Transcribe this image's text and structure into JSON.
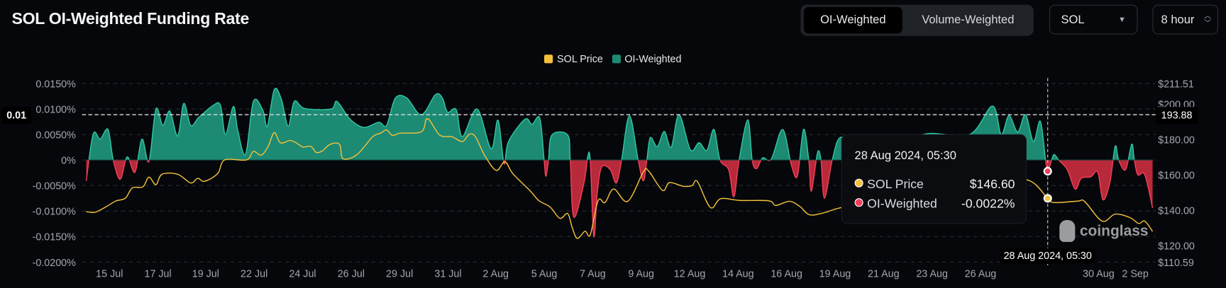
{
  "header": {
    "title": "SOL OI-Weighted Funding Rate",
    "segments": [
      "OI-Weighted",
      "Volume-Weighted"
    ],
    "active_segment": "OI-Weighted",
    "coin_select": "SOL",
    "interval_select": "8 hour"
  },
  "colors": {
    "background": "#05070a",
    "positive_fill": "#1d8a74",
    "positive_line": "#2fc7a3",
    "negative_fill": "#b8293a",
    "negative_line": "#f2405a",
    "price_line": "#f3c13a",
    "grid": "#2a2d33"
  },
  "tooltip": {
    "title": "28 Aug 2024, 05:30",
    "rows": [
      {
        "label": "SOL Price",
        "value": "$146.60",
        "color": "#f3c13a"
      },
      {
        "label": "OI-Weighted",
        "value": "-0.0022%",
        "color": "#f2405a"
      }
    ]
  },
  "crosshair": {
    "x_label": "28 Aug 2024, 05:30",
    "x_time": "2024-08-28 05:30",
    "left_label": "0.01",
    "right_label": "193.88",
    "price": 193.88
  },
  "watermark": "coinglass",
  "chart_data": {
    "type": "area+line",
    "legend": [
      {
        "name": "SOL Price",
        "color": "#f3c13a"
      },
      {
        "name": "OI-Weighted",
        "color": "#1d8a74"
      }
    ],
    "legend_position": "top-center",
    "grid": true,
    "x_tick_labels": [
      "15 Jul",
      "17 Jul",
      "19 Jul",
      "22 Jul",
      "24 Jul",
      "26 Jul",
      "29 Jul",
      "31 Jul",
      "2 Aug",
      "5 Aug",
      "7 Aug",
      "9 Aug",
      "12 Aug",
      "14 Aug",
      "16 Aug",
      "19 Aug",
      "21 Aug",
      "23 Aug",
      "26 Aug",
      "30 Aug",
      "2 Sep"
    ],
    "left_axis": {
      "unit": "%",
      "ylim": [
        -0.02,
        0.015
      ],
      "tick_labels": [
        "0.0150%",
        "0.0100%",
        "0.0050%",
        "0%",
        "-0.0050%",
        "-0.0100%",
        "-0.0150%",
        "-0.0200%"
      ],
      "ticks": [
        0.015,
        0.01,
        0.005,
        0,
        -0.005,
        -0.01,
        -0.015,
        -0.02
      ]
    },
    "right_axis": {
      "ylim": [
        110.59,
        211.51
      ],
      "tick_labels": [
        "$211.51",
        "$200.00",
        "$180.00",
        "$160.00",
        "$140.00",
        "$120.00",
        "$110.59"
      ],
      "ticks": [
        211.51,
        200,
        180,
        160,
        140,
        120,
        110.59
      ]
    },
    "series": [
      {
        "name": "OI-Weighted",
        "axis": "left",
        "points": [
          [
            "2024-07-13 05:00",
            -0.0041
          ],
          [
            "2024-07-13 13:00",
            0.0051
          ],
          [
            "2024-07-13 21:00",
            0.0041
          ],
          [
            "2024-07-14 06:00",
            0.006
          ],
          [
            "2024-07-14 12:00",
            0.0
          ],
          [
            "2024-07-14 20:00",
            -0.0038
          ],
          [
            "2024-07-15 04:00",
            0.0006
          ],
          [
            "2024-07-15 13:00",
            -0.0024
          ],
          [
            "2024-07-15 21:00",
            0.0041
          ],
          [
            "2024-07-16 05:00",
            -0.0003
          ],
          [
            "2024-07-16 13:00",
            0.01
          ],
          [
            "2024-07-16 21:00",
            0.0068
          ],
          [
            "2024-07-17 05:00",
            0.0096
          ],
          [
            "2024-07-17 14:00",
            0.0047
          ],
          [
            "2024-07-17 21:00",
            0.0111
          ],
          [
            "2024-07-18 05:00",
            0.0068
          ],
          [
            "2024-07-18 14:00",
            0.0083
          ],
          [
            "2024-07-19 06:00",
            0.0106
          ],
          [
            "2024-07-19 15:00",
            0.0108
          ],
          [
            "2024-07-19 21:00",
            0.005
          ],
          [
            "2024-07-20 06:00",
            0.0105
          ],
          [
            "2024-07-20 11:00",
            0.0059
          ],
          [
            "2024-07-20 20:00",
            0.0011
          ],
          [
            "2024-07-21 05:00",
            0.0115
          ],
          [
            "2024-07-21 16:00",
            0.0097
          ],
          [
            "2024-07-21 21:00",
            0.0066
          ],
          [
            "2024-07-22 05:00",
            0.0138
          ],
          [
            "2024-07-22 13:00",
            0.012
          ],
          [
            "2024-07-22 21:00",
            0.0066
          ],
          [
            "2024-07-23 04:00",
            0.0115
          ],
          [
            "2024-07-23 16:00",
            0.0101
          ],
          [
            "2024-07-24 22:00",
            0.01
          ],
          [
            "2024-07-25 05:00",
            0.0115
          ],
          [
            "2024-07-25 20:00",
            0.008
          ],
          [
            "2024-07-26 12:00",
            0.0064
          ],
          [
            "2024-07-27 05:00",
            0.0074
          ],
          [
            "2024-07-27 14:00",
            0.0068
          ],
          [
            "2024-07-28 00:00",
            0.0121
          ],
          [
            "2024-07-28 13:00",
            0.0122
          ],
          [
            "2024-07-29 06:00",
            0.0089
          ],
          [
            "2024-07-29 22:00",
            0.0128
          ],
          [
            "2024-07-30 06:00",
            0.0122
          ],
          [
            "2024-07-30 12:00",
            0.0094
          ],
          [
            "2024-07-30 22:00",
            0.0099
          ],
          [
            "2024-07-31 05:00",
            0.0046
          ],
          [
            "2024-07-31 22:00",
            0.01
          ],
          [
            "2024-08-01 14:00",
            0.0022
          ],
          [
            "2024-08-01 22:00",
            0.0078
          ],
          [
            "2024-08-02 05:00",
            -0.0007
          ],
          [
            "2024-08-02 10:00",
            0.0036
          ],
          [
            "2024-08-03 05:00",
            0.008
          ],
          [
            "2024-08-03 13:00",
            0.007
          ],
          [
            "2024-08-03 22:00",
            0.0082
          ],
          [
            "2024-08-04 03:00",
            0.0
          ],
          [
            "2024-08-04 05:00",
            -0.0032
          ],
          [
            "2024-08-04 08:00",
            0.0
          ],
          [
            "2024-08-04 12:00",
            0.0049
          ],
          [
            "2024-08-05 06:00",
            0.0049
          ],
          [
            "2024-08-05 09:00",
            0.0
          ],
          [
            "2024-08-05 13:00",
            -0.0112
          ],
          [
            "2024-08-06 01:00",
            -0.0043
          ],
          [
            "2024-08-06 05:00",
            0.0006
          ],
          [
            "2024-08-06 08:00",
            0.0
          ],
          [
            "2024-08-06 12:00",
            -0.015
          ],
          [
            "2024-08-06 16:00",
            -0.0066
          ],
          [
            "2024-08-06 21:00",
            -0.0014
          ],
          [
            "2024-08-07 07:00",
            -0.0019
          ],
          [
            "2024-08-07 14:00",
            -0.0045
          ],
          [
            "2024-08-07 20:00",
            0.0
          ],
          [
            "2024-08-08 05:00",
            0.0087
          ],
          [
            "2024-08-08 15:00",
            0.0
          ],
          [
            "2024-08-08 21:00",
            -0.0041
          ],
          [
            "2024-08-09 01:00",
            0.0
          ],
          [
            "2024-08-09 05:00",
            0.0044
          ],
          [
            "2024-08-09 13:00",
            0.0026
          ],
          [
            "2024-08-09 21:00",
            0.0056
          ],
          [
            "2024-08-10 05:00",
            0.0025
          ],
          [
            "2024-08-10 14:00",
            0.0089
          ],
          [
            "2024-08-11 03:00",
            0.002
          ],
          [
            "2024-08-11 13:00",
            0.0034
          ],
          [
            "2024-08-11 22:00",
            0.0019
          ],
          [
            "2024-08-12 06:00",
            0.006
          ],
          [
            "2024-08-12 13:00",
            0.0
          ],
          [
            "2024-08-12 23:00",
            -0.0019
          ],
          [
            "2024-08-13 05:00",
            -0.0072
          ],
          [
            "2024-08-13 11:00",
            0.0
          ],
          [
            "2024-08-13 21:00",
            0.0079
          ],
          [
            "2024-08-14 02:00",
            0.0
          ],
          [
            "2024-08-14 07:00",
            -0.0017
          ],
          [
            "2024-08-14 14:00",
            0.0004
          ],
          [
            "2024-08-15 00:00",
            0.0002
          ],
          [
            "2024-08-15 13:00",
            0.006
          ],
          [
            "2024-08-15 23:00",
            -0.001
          ],
          [
            "2024-08-16 06:00",
            -0.0031
          ],
          [
            "2024-08-16 13:00",
            0.006
          ],
          [
            "2024-08-16 19:00",
            0.0
          ],
          [
            "2024-08-16 22:00",
            -0.0061
          ],
          [
            "2024-08-17 05:00",
            0.0014
          ],
          [
            "2024-08-17 09:00",
            0.0
          ],
          [
            "2024-08-17 13:00",
            -0.0075
          ],
          [
            "2024-08-17 22:00",
            0.0
          ],
          [
            "2024-08-18 07:00",
            0.0044
          ],
          [
            "2024-08-19 00:00",
            0.003
          ],
          [
            "2024-08-20 00:00",
            0.004
          ],
          [
            "2024-08-21 00:00",
            0.0035
          ],
          [
            "2024-08-22 13:00",
            0.0052
          ],
          [
            "2024-08-24 12:00",
            0.005
          ],
          [
            "2024-08-25 14:00",
            0.0106
          ],
          [
            "2024-08-26 00:00",
            0.005
          ],
          [
            "2024-08-26 09:00",
            0.0087
          ],
          [
            "2024-08-26 19:00",
            0.0055
          ],
          [
            "2024-08-27 04:00",
            0.0089
          ],
          [
            "2024-08-27 13:00",
            0.0036
          ],
          [
            "2024-08-27 21:00",
            0.0076
          ],
          [
            "2024-08-28 03:00",
            0.0
          ],
          [
            "2024-08-28 05:30",
            -0.0022
          ],
          [
            "2024-08-28 10:00",
            0.0
          ],
          [
            "2024-08-28 13:00",
            0.0011
          ],
          [
            "2024-08-28 18:00",
            0.0
          ],
          [
            "2024-08-29 04:00",
            -0.0019
          ],
          [
            "2024-08-29 13:00",
            -0.0057
          ],
          [
            "2024-08-29 20:00",
            -0.0036
          ],
          [
            "2024-08-30 07:00",
            -0.0033
          ],
          [
            "2024-08-30 15:00",
            -0.0024
          ],
          [
            "2024-08-30 21:00",
            -0.0078
          ],
          [
            "2024-08-31 05:00",
            -0.0043
          ],
          [
            "2024-08-31 11:00",
            0.0027
          ],
          [
            "2024-08-31 15:00",
            0.0
          ],
          [
            "2024-08-31 23:00",
            -0.0019
          ],
          [
            "2024-09-01 06:00",
            0.0031
          ],
          [
            "2024-09-01 09:00",
            0.0
          ],
          [
            "2024-09-01 13:00",
            -0.0029
          ],
          [
            "2024-09-01 21:00",
            -0.0029
          ],
          [
            "2024-09-02 06:00",
            -0.0094
          ]
        ]
      },
      {
        "name": "SOL Price",
        "axis": "right",
        "points": [
          [
            "2024-07-13 05:00",
            139.1
          ],
          [
            "2024-07-13 15:00",
            138.7
          ],
          [
            "2024-07-14 04:00",
            141.9
          ],
          [
            "2024-07-14 15:00",
            145.1
          ],
          [
            "2024-07-15 02:00",
            146.7
          ],
          [
            "2024-07-15 10:00",
            152.5
          ],
          [
            "2024-07-15 22:00",
            153.1
          ],
          [
            "2024-07-16 05:00",
            158.6
          ],
          [
            "2024-07-16 13:00",
            154.3
          ],
          [
            "2024-07-16 20:00",
            160.2
          ],
          [
            "2024-07-17 14:00",
            160.2
          ],
          [
            "2024-07-18 05:00",
            155.3
          ],
          [
            "2024-07-18 13:00",
            157.9
          ],
          [
            "2024-07-18 21:00",
            156.2
          ],
          [
            "2024-07-19 12:00",
            160.6
          ],
          [
            "2024-07-19 20:00",
            168.3
          ],
          [
            "2024-07-20 21:00",
            168.3
          ],
          [
            "2024-07-21 05:00",
            173.1
          ],
          [
            "2024-07-21 14:00",
            171.0
          ],
          [
            "2024-07-21 22:00",
            176.0
          ],
          [
            "2024-07-22 05:00",
            183.8
          ],
          [
            "2024-07-22 12:00",
            178.0
          ],
          [
            "2024-07-22 23:00",
            179.3
          ],
          [
            "2024-07-23 06:00",
            178.0
          ],
          [
            "2024-07-23 14:00",
            175.6
          ],
          [
            "2024-07-23 23:00",
            176.0
          ],
          [
            "2024-07-24 05:00",
            172.6
          ],
          [
            "2024-07-24 12:00",
            173.3
          ],
          [
            "2024-07-24 21:00",
            177.1
          ],
          [
            "2024-07-25 08:00",
            177.1
          ],
          [
            "2024-07-25 12:00",
            169.0
          ],
          [
            "2024-07-26 04:00",
            171.3
          ],
          [
            "2024-07-26 22:00",
            181.4
          ],
          [
            "2024-07-27 07:00",
            183.4
          ],
          [
            "2024-07-27 14:00",
            185.2
          ],
          [
            "2024-07-27 21:00",
            182.1
          ],
          [
            "2024-07-28 05:00",
            183.4
          ],
          [
            "2024-07-29 06:00",
            184.3
          ],
          [
            "2024-07-29 13:00",
            191.7
          ],
          [
            "2024-07-30 03:00",
            182.4
          ],
          [
            "2024-07-30 17:00",
            181.4
          ],
          [
            "2024-07-31 05:00",
            178.7
          ],
          [
            "2024-07-31 13:00",
            182.8
          ],
          [
            "2024-07-31 20:00",
            181.4
          ],
          [
            "2024-08-01 07:00",
            170.6
          ],
          [
            "2024-08-01 20:00",
            162.4
          ],
          [
            "2024-08-02 06:00",
            167.3
          ],
          [
            "2024-08-02 15:00",
            160.6
          ],
          [
            "2024-08-03 10:00",
            151.3
          ],
          [
            "2024-08-03 21:00",
            145.3
          ],
          [
            "2024-08-04 10:00",
            141.6
          ],
          [
            "2024-08-04 21:00",
            135.3
          ],
          [
            "2024-08-05 06:00",
            138.0
          ],
          [
            "2024-08-05 11:00",
            130.6
          ],
          [
            "2024-08-05 17:00",
            123.9
          ],
          [
            "2024-08-06 02:00",
            128.0
          ],
          [
            "2024-08-06 08:00",
            126.0
          ],
          [
            "2024-08-06 17:00",
            145.3
          ],
          [
            "2024-08-07 01:00",
            144.2
          ],
          [
            "2024-08-07 11:00",
            151.9
          ],
          [
            "2024-08-08 03:00",
            144.9
          ],
          [
            "2024-08-08 21:00",
            161.5
          ],
          [
            "2024-08-09 03:00",
            162.1
          ],
          [
            "2024-08-09 19:00",
            151.1
          ],
          [
            "2024-08-10 03:00",
            155.5
          ],
          [
            "2024-08-10 19:00",
            153.4
          ],
          [
            "2024-08-11 05:00",
            153.8
          ],
          [
            "2024-08-11 11:00",
            156.1
          ],
          [
            "2024-08-12 02:00",
            141.4
          ],
          [
            "2024-08-12 14:00",
            146.4
          ],
          [
            "2024-08-13 12:00",
            145.4
          ],
          [
            "2024-08-14 21:00",
            145.2
          ],
          [
            "2024-08-15 05:00",
            142.6
          ],
          [
            "2024-08-15 21:00",
            144.9
          ],
          [
            "2024-08-16 09:00",
            141.9
          ],
          [
            "2024-08-16 20:00",
            137.3
          ],
          [
            "2024-08-17 13:00",
            138.5
          ],
          [
            "2024-08-18 07:00",
            141.2
          ],
          [
            "2024-08-20 09:00",
            146.0
          ],
          [
            "2024-08-23 00:00",
            153.0
          ],
          [
            "2024-08-25 06:00",
            156.0
          ],
          [
            "2024-08-27 06:00",
            157.0
          ],
          [
            "2024-08-28 05:30",
            146.6
          ],
          [
            "2024-08-28 13:00",
            144.2
          ],
          [
            "2024-08-29 16:00",
            145.0
          ],
          [
            "2024-08-30 00:00",
            144.8
          ],
          [
            "2024-08-30 20:00",
            133.7
          ],
          [
            "2024-08-31 11:00",
            137.7
          ],
          [
            "2024-09-01 04:00",
            135.7
          ],
          [
            "2024-09-01 14:00",
            132.4
          ],
          [
            "2024-09-01 21:00",
            133.7
          ],
          [
            "2024-09-02 06:00",
            127.9
          ]
        ]
      }
    ]
  }
}
